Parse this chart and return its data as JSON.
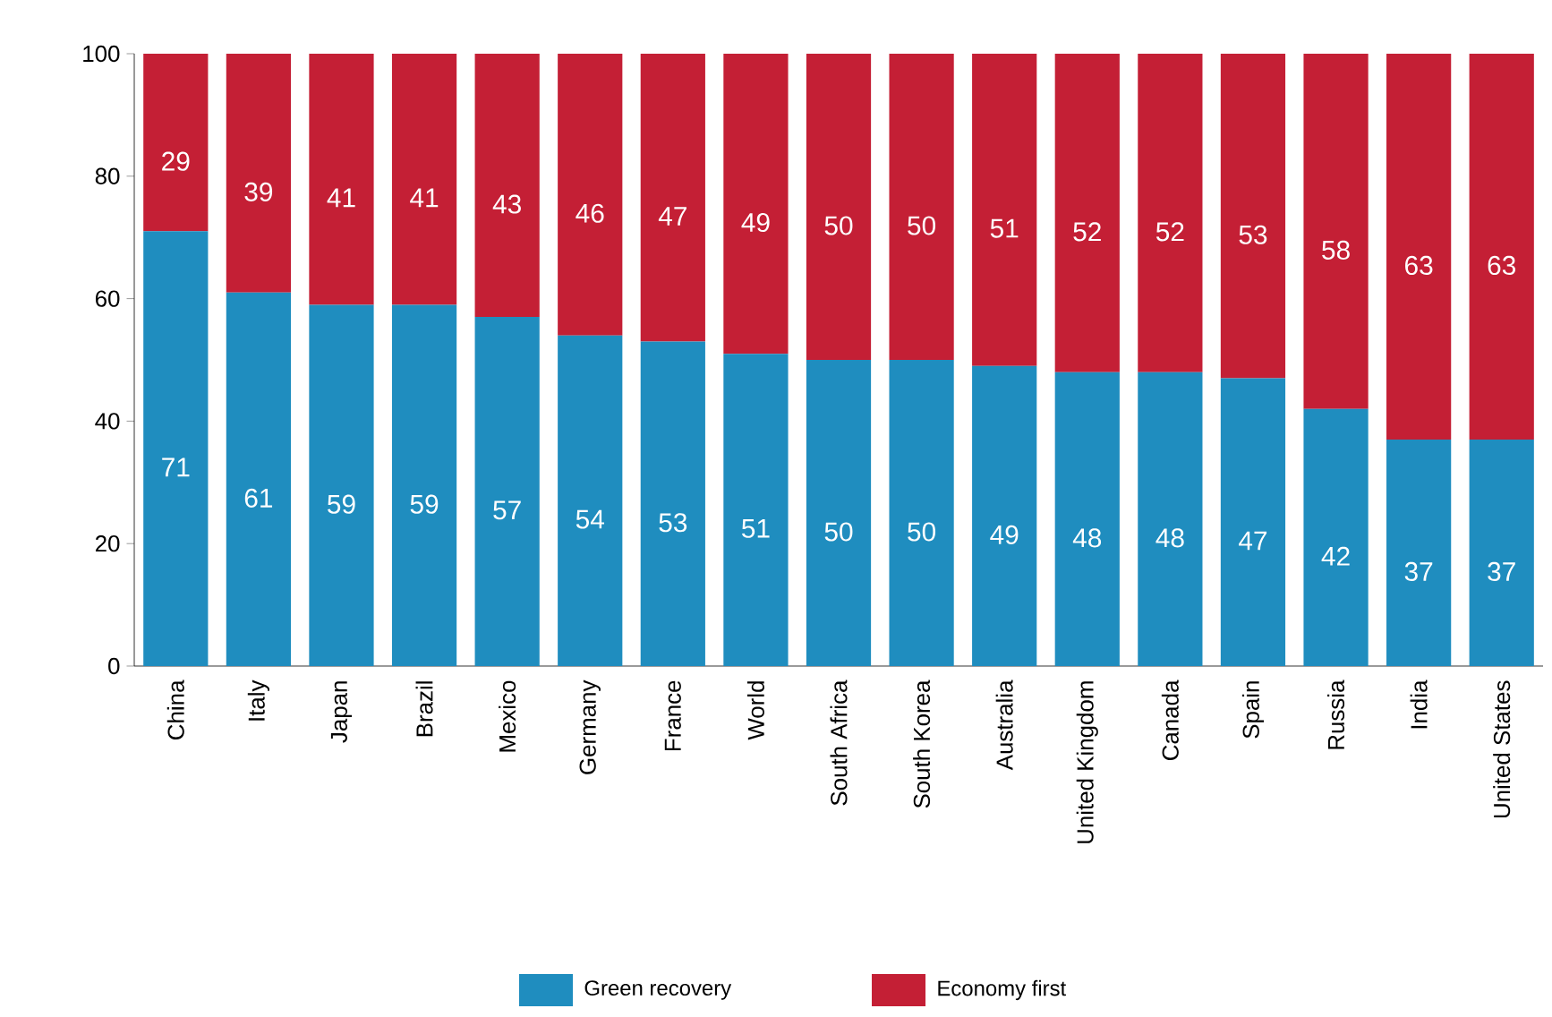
{
  "chart_data": {
    "type": "bar",
    "stacked": true,
    "categories": [
      "China",
      "Italy",
      "Japan",
      "Brazil",
      "Mexico",
      "Germany",
      "France",
      "World",
      "South Africa",
      "South Korea",
      "Australia",
      "United Kingdom",
      "Canada",
      "Spain",
      "Russia",
      "India",
      "United States"
    ],
    "series": [
      {
        "name": "Green recovery",
        "color": "#1f8dbf",
        "values": [
          71,
          61,
          59,
          59,
          57,
          54,
          53,
          51,
          50,
          50,
          49,
          48,
          48,
          47,
          42,
          37,
          37
        ]
      },
      {
        "name": "Economy first",
        "color": "#c41f35",
        "values": [
          29,
          39,
          41,
          41,
          43,
          46,
          47,
          49,
          50,
          50,
          51,
          52,
          52,
          53,
          58,
          63,
          63
        ]
      }
    ],
    "ylim": [
      0,
      100
    ],
    "yticks": [
      0,
      20,
      40,
      60,
      80,
      100
    ],
    "grid": false,
    "legend": "bottom",
    "data_labels": true
  }
}
